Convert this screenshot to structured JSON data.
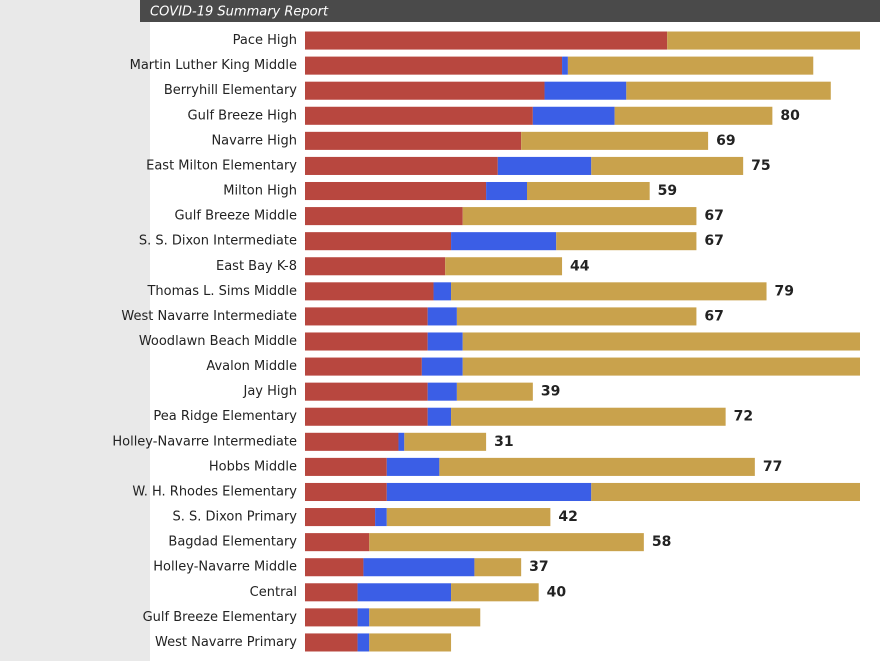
{
  "chart_data": {
    "type": "stacked-bar-horizontal",
    "title": "COVID-19 Summary Report",
    "categories": [
      "Pace High",
      "Martin Luther King Middle",
      "Berryhill Elementary",
      "Gulf Breeze High",
      "Navarre High",
      "East Milton Elementary",
      "Milton High",
      "Gulf Breeze Middle",
      "S. S. Dixon Intermediate",
      "East Bay K-8",
      "Thomas L. Sims Middle",
      "West Navarre Intermediate",
      "Woodlawn Beach Middle",
      "Avalon Middle",
      "Jay High",
      "Pea Ridge Elementary",
      "Holley-Navarre Intermediate",
      "Hobbs Middle",
      "W. H. Rhodes Elementary",
      "S. S. Dixon Primary",
      "Bagdad Elementary",
      "Holley-Navarre Middle",
      "Central",
      "Gulf Breeze Elementary",
      "West Navarre Primary"
    ],
    "series": [
      {
        "color": "#b8473f",
        "values": [
          62,
          44,
          41,
          39,
          37,
          33,
          31,
          27,
          25,
          24,
          22,
          21,
          21,
          20,
          21,
          21,
          16,
          14,
          14,
          12,
          11,
          10,
          9,
          9,
          9
        ]
      },
      {
        "color": "#3b5ee6",
        "values": [
          0,
          1,
          14,
          14,
          0,
          16,
          7,
          0,
          18,
          0,
          3,
          5,
          6,
          7,
          5,
          4,
          1,
          9,
          35,
          2,
          0,
          19,
          16,
          2,
          2
        ]
      },
      {
        "color": "#c9a24c",
        "values": [
          33,
          42,
          35,
          27,
          32,
          26,
          21,
          40,
          24,
          20,
          54,
          41,
          68,
          68,
          13,
          47,
          14,
          54,
          46,
          28,
          47,
          8,
          15,
          19,
          14
        ]
      }
    ],
    "totals": [
      null,
      null,
      null,
      80,
      69,
      75,
      59,
      67,
      67,
      44,
      79,
      67,
      null,
      null,
      39,
      72,
      31,
      77,
      null,
      42,
      58,
      37,
      40,
      null,
      null
    ],
    "xlim": [
      0,
      95
    ]
  }
}
